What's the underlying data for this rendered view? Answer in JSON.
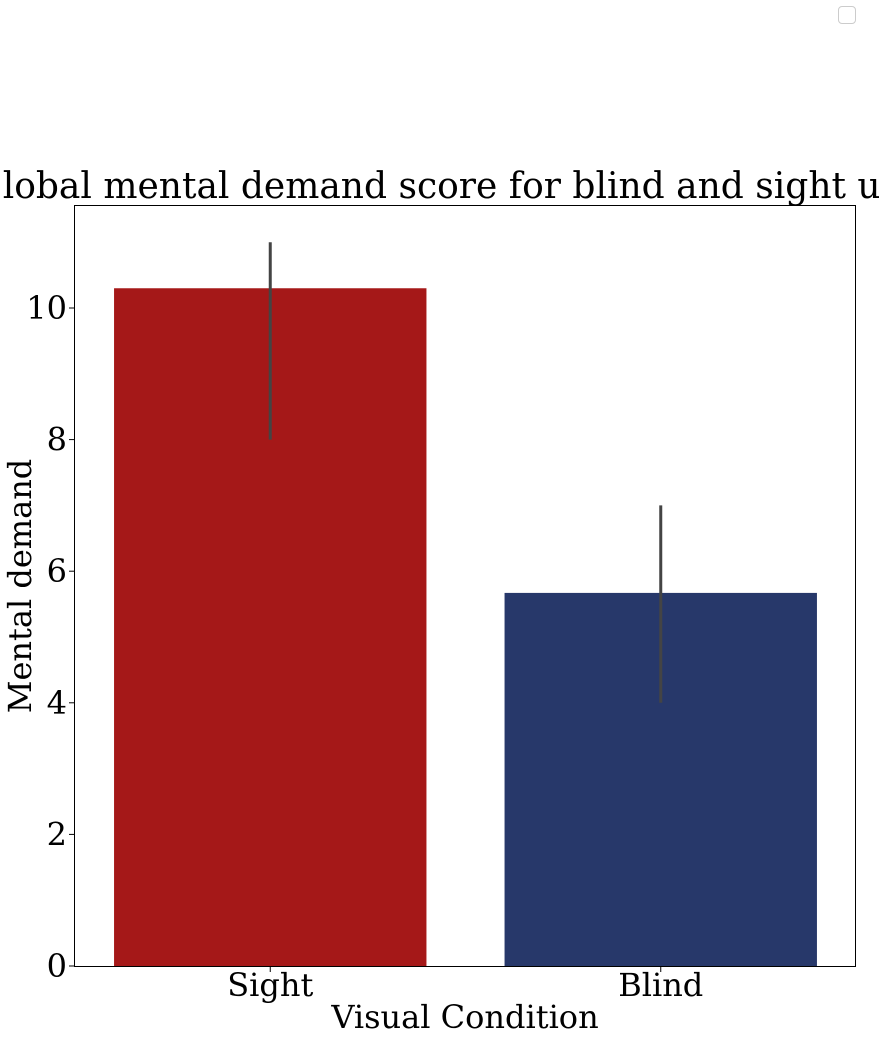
{
  "chart_data": {
    "type": "bar",
    "title": "Global mental demand score for blind and sight users",
    "xlabel": "Visual Condition",
    "ylabel": "Mental demand",
    "categories": [
      "Sight",
      "Blind"
    ],
    "values": [
      10.3,
      5.67
    ],
    "error_bars": [
      {
        "low": 8.0,
        "high": 11.0
      },
      {
        "low": 4.0,
        "high": 7.0
      }
    ],
    "bar_colors": [
      "#a51818",
      "#27386a"
    ],
    "error_bar_color": "#444444",
    "ylim": [
      0,
      11.55
    ],
    "yticks": [
      0,
      2,
      4,
      6,
      8,
      10
    ],
    "ytick_labels": [
      "0",
      "2",
      "4",
      "6",
      "8",
      "10"
    ],
    "grid": false,
    "legend": {
      "placement": "top-right",
      "entries": []
    }
  }
}
